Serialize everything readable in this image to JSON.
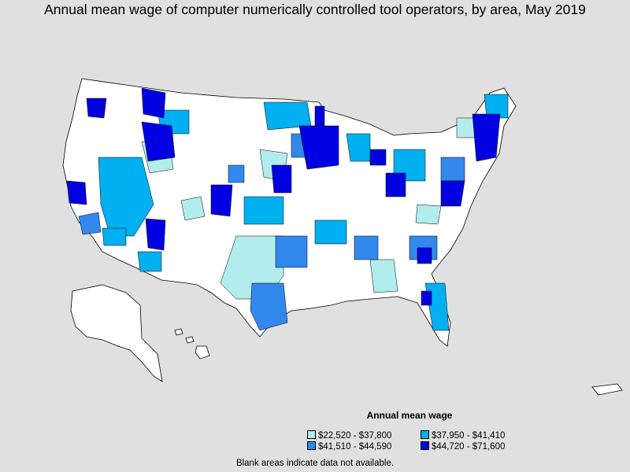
{
  "title": "Annual mean wage of computer numerically controlled tool operators, by area, May 2019",
  "legend": {
    "title": "Annual mean wage",
    "items": [
      {
        "label": "$22,520 - $37,800",
        "color": "#b2eded"
      },
      {
        "label": "$37,950 - $41,410",
        "color": "#00b0f0"
      },
      {
        "label": "$41,510 - $44,590",
        "color": "#3388ee"
      },
      {
        "label": "$44,720 - $71,600",
        "color": "#0000e0"
      }
    ]
  },
  "note": "Blank areas indicate data not available.",
  "colors": {
    "background": "#e0e0e0",
    "blank": "#ffffff",
    "border": "#000000"
  }
}
